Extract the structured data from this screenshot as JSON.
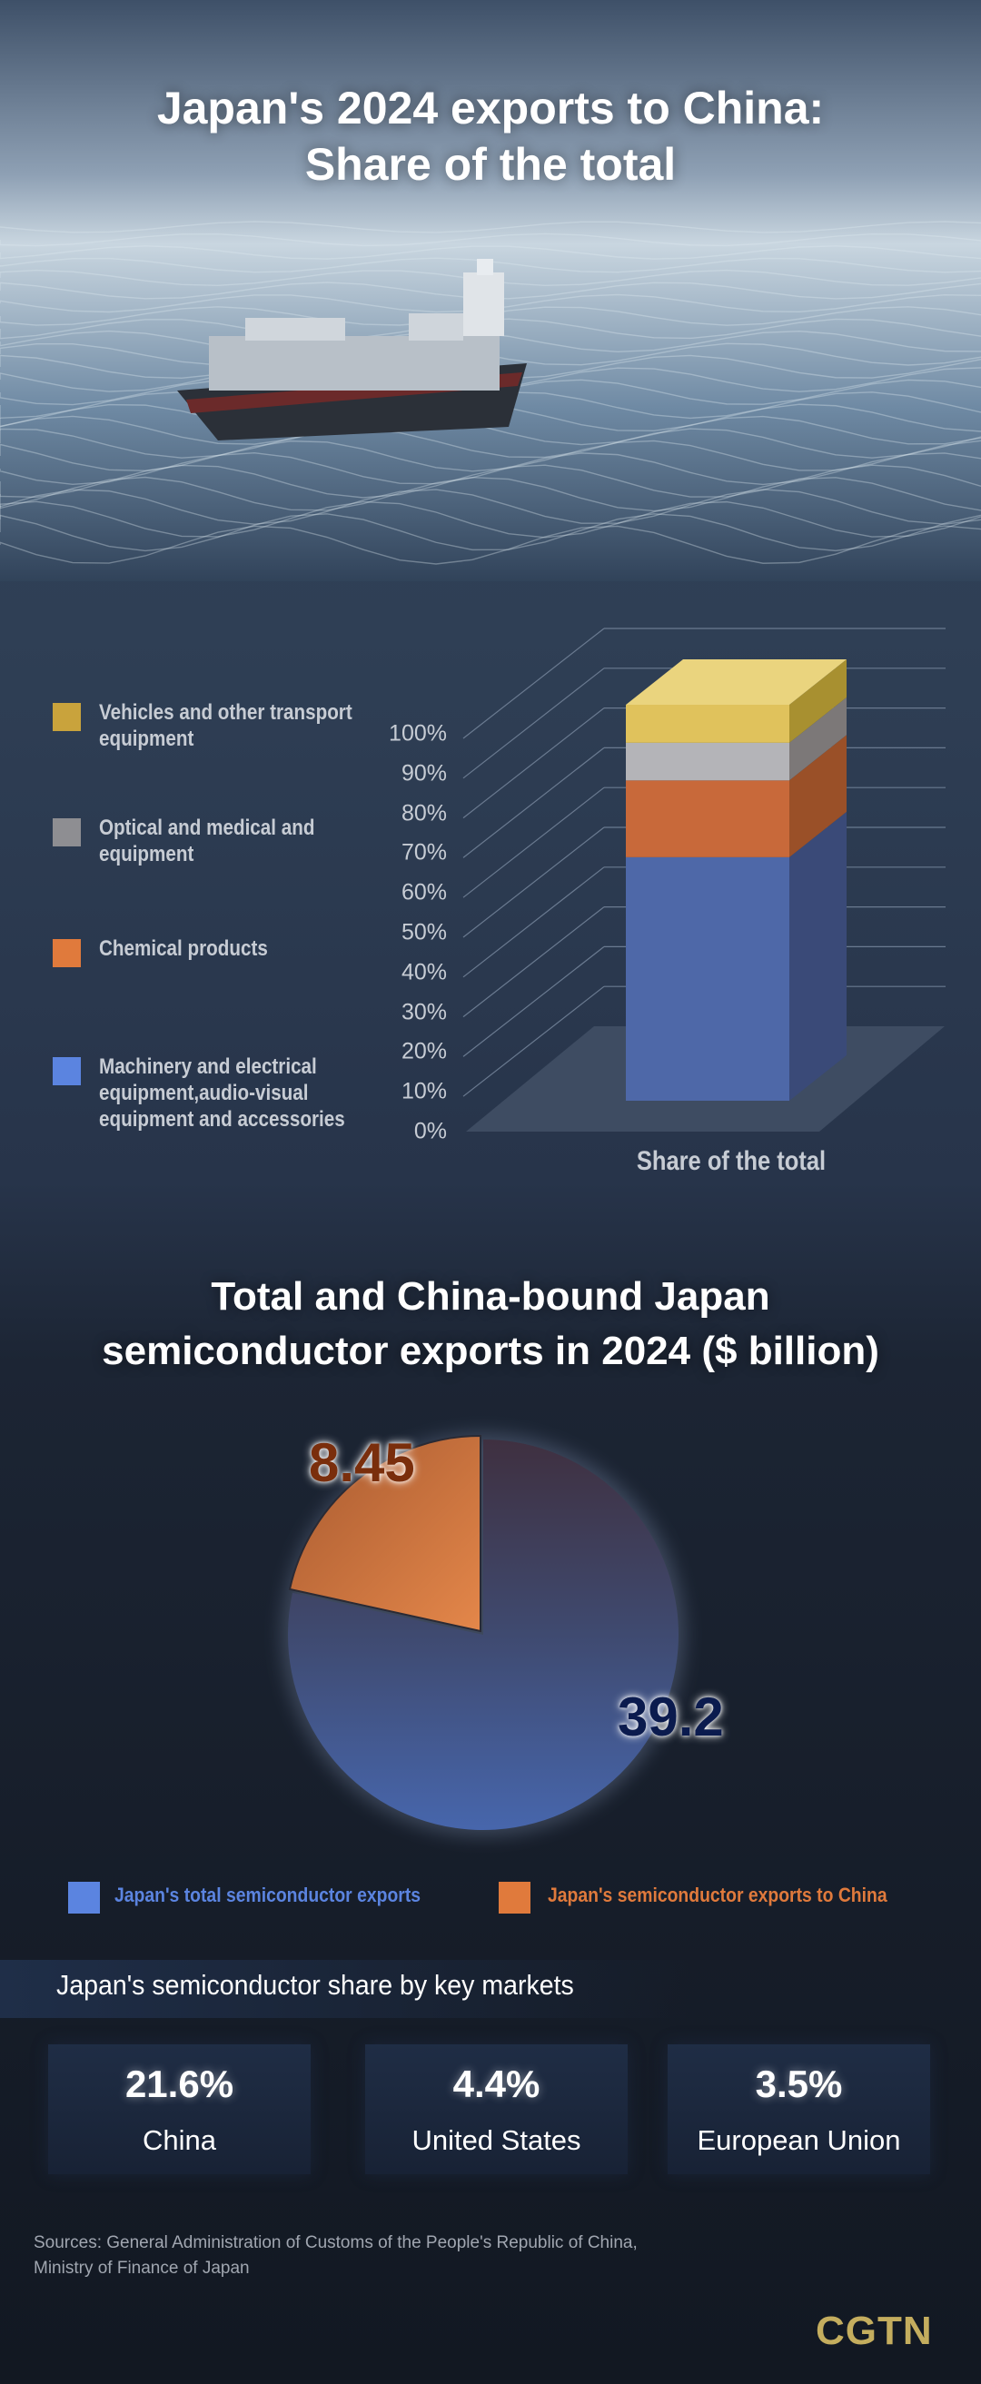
{
  "header": {
    "title_line1": "Japan's 2024 exports to China:",
    "title_line2": "Share of the total"
  },
  "chart_data": [
    {
      "type": "bar",
      "stacked": true,
      "three_d": true,
      "categories": [
        "Share of the total"
      ],
      "yticks": [
        "0%",
        "10%",
        "20%",
        "30%",
        "40%",
        "50%",
        "60%",
        "70%",
        "80%",
        "90%",
        "100%"
      ],
      "ylim": [
        0,
        100
      ],
      "legend_position": "left",
      "series": [
        {
          "name": "Machinery and electrical equipment,audio-visual equipment and accessories",
          "values": [
            61.5
          ],
          "color": "#4d66a6"
        },
        {
          "name": "Chemical products",
          "values": [
            19.4
          ],
          "color": "#d06e38"
        },
        {
          "name": "Optical and medical and equipment",
          "values": [
            9.5
          ],
          "color": "#a9a9ad"
        },
        {
          "name": "Vehicles and other transport equipment",
          "values": [
            9.6
          ],
          "color": "#d9bc55"
        }
      ],
      "legend_colors": {
        "vehicles": "#c9a33c",
        "optical": "#8e8e92",
        "chemical": "#e07a3c",
        "machinery": "#5b84e0"
      }
    },
    {
      "type": "pie",
      "title": "Total and China-bound Japan semiconductor exports in 2024 ($ billion)",
      "title_line1": "Total and China-bound Japan",
      "title_line2": "semiconductor exports in 2024 ($ billion)",
      "total": 39.2,
      "slices": [
        {
          "name": "Japan's total semiconductor exports",
          "value": 39.2,
          "label": "39.2",
          "color": "#4a68b0"
        },
        {
          "name": "Japan's semiconductor exports to China",
          "value": 8.45,
          "label": "8.45",
          "color": "#d4733a"
        }
      ],
      "legend_position": "bottom"
    }
  ],
  "markets": {
    "title": "Japan's semiconductor share by key markets",
    "cards": [
      {
        "value": "21.6%",
        "label": "China"
      },
      {
        "value": "4.4%",
        "label": "United States"
      },
      {
        "value": "3.5%",
        "label": "European Union"
      }
    ]
  },
  "sources": {
    "line1": "Sources: General Administration of Customs of the People's Republic of China,",
    "line2": "Ministry of Finance of Japan"
  },
  "logo": "CGTN"
}
